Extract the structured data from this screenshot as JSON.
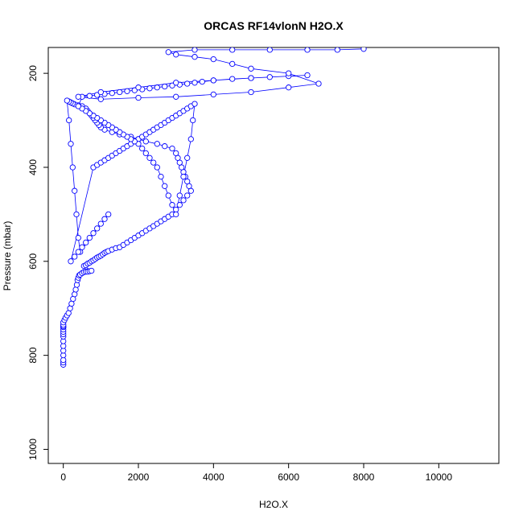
{
  "chart_data": {
    "type": "scatter",
    "title": "ORCAS RF14vlonN H2O.X",
    "xlabel": "H2O.X",
    "ylabel": "Pressure (mbar)",
    "xlim": [
      -400,
      11600
    ],
    "ylim": [
      1030,
      145
    ],
    "y_reversed": true,
    "x_ticks": [
      "0",
      "2000",
      "4000",
      "6000",
      "8000",
      "10000"
    ],
    "x_tick_values": [
      0,
      2000,
      4000,
      6000,
      8000,
      10000
    ],
    "y_ticks": [
      "200",
      "400",
      "600",
      "800",
      "1000"
    ],
    "y_tick_values": [
      200,
      400,
      600,
      800,
      1000
    ],
    "grid": false,
    "legend": "none",
    "series_color": "#0000ff",
    "marker": "open-circle",
    "connected": true,
    "series": [
      {
        "x": [
          0,
          0,
          0,
          0,
          0,
          0,
          0,
          0,
          0,
          0,
          0,
          0,
          0,
          0,
          0,
          0,
          30,
          60,
          100,
          140,
          180,
          220,
          260,
          300,
          330,
          360,
          380,
          400,
          420,
          450,
          500,
          550,
          600,
          650,
          700,
          750,
          550,
          600,
          650,
          700,
          750,
          800,
          850,
          900,
          950,
          1000,
          1050,
          1100,
          1150,
          1200,
          1300,
          1400,
          1500,
          1600,
          1700,
          1800,
          1900,
          2000,
          2100,
          2200,
          2300,
          2400,
          2500,
          2600,
          2700,
          2800,
          2900,
          3000,
          3100,
          3200,
          3300,
          3400,
          3350,
          3300,
          3250,
          3200,
          3150,
          3100,
          3050,
          3000,
          2900,
          2700,
          2500,
          2200,
          2000,
          1800,
          1500,
          1300,
          1100,
          1000,
          950,
          900,
          850,
          800,
          750,
          700,
          650,
          600,
          500,
          400,
          300,
          250,
          200,
          150,
          100,
          150,
          200,
          250,
          300,
          350,
          400,
          450,
          1200,
          1100,
          1000,
          900,
          800,
          700,
          600,
          500,
          400,
          300,
          200,
          800,
          900,
          1000,
          1100,
          1200,
          1300,
          1400,
          1500,
          1600,
          1700,
          1800,
          1900,
          2000,
          2100,
          2200,
          2300,
          2400,
          2500,
          2600,
          2700,
          2800,
          2900,
          3000,
          3100,
          3200,
          3300,
          3400,
          3500,
          3450,
          3400,
          3300,
          3200,
          3100,
          3000,
          2900,
          2800,
          2700,
          2600,
          2500,
          2400,
          2300,
          2200,
          2100,
          2000,
          1900,
          1800,
          1700,
          1600,
          1500,
          1400,
          1300,
          1200,
          1100,
          1000,
          900,
          800,
          700,
          600,
          500,
          400,
          500,
          700,
          900,
          1100,
          1300,
          1500,
          1700,
          1900,
          2100,
          2300,
          2500,
          2700,
          2900,
          3100,
          3300,
          3500,
          3700,
          4000,
          4500,
          5000,
          5500,
          6000,
          6500,
          5000,
          4000,
          3000,
          2000,
          1000,
          400,
          1000,
          2000,
          3000,
          4000,
          5000,
          6000,
          6800,
          6000,
          5000,
          4500,
          4000,
          3500,
          3000,
          2800,
          3500,
          4500,
          5500,
          6500,
          7300,
          8000
        ],
        "y": [
          820,
          815,
          810,
          800,
          790,
          780,
          770,
          760,
          755,
          750,
          745,
          740,
          740,
          738,
          735,
          730,
          725,
          720,
          715,
          710,
          700,
          690,
          680,
          670,
          660,
          650,
          640,
          635,
          630,
          628,
          625,
          623,
          622,
          622,
          621,
          620,
          610,
          608,
          605,
          603,
          600,
          598,
          595,
          592,
          590,
          588,
          585,
          582,
          580,
          578,
          575,
          572,
          570,
          565,
          560,
          555,
          550,
          545,
          540,
          535,
          530,
          525,
          520,
          515,
          510,
          505,
          500,
          490,
          480,
          470,
          460,
          450,
          440,
          430,
          420,
          410,
          400,
          390,
          380,
          370,
          360,
          355,
          350,
          345,
          340,
          335,
          330,
          325,
          320,
          315,
          310,
          305,
          300,
          295,
          290,
          285,
          280,
          275,
          270,
          268,
          266,
          264,
          262,
          260,
          258,
          300,
          350,
          400,
          450,
          500,
          550,
          580,
          500,
          510,
          520,
          530,
          540,
          550,
          560,
          570,
          580,
          590,
          600,
          400,
          395,
          390,
          385,
          380,
          375,
          370,
          365,
          360,
          355,
          350,
          345,
          340,
          335,
          330,
          325,
          320,
          315,
          310,
          305,
          300,
          295,
          290,
          285,
          280,
          275,
          270,
          265,
          300,
          340,
          380,
          420,
          460,
          500,
          480,
          460,
          440,
          420,
          400,
          390,
          380,
          370,
          360,
          350,
          345,
          340,
          335,
          330,
          325,
          320,
          315,
          310,
          305,
          300,
          295,
          290,
          285,
          280,
          275,
          270,
          250,
          248,
          246,
          244,
          242,
          240,
          238,
          236,
          234,
          232,
          230,
          228,
          226,
          224,
          222,
          220,
          218,
          215,
          212,
          210,
          208,
          206,
          204,
          210,
          215,
          220,
          230,
          240,
          250,
          255,
          252,
          250,
          245,
          240,
          230,
          222,
          200,
          190,
          180,
          170,
          165,
          160,
          155,
          150,
          150,
          150,
          150,
          150,
          148
        ]
      }
    ]
  }
}
